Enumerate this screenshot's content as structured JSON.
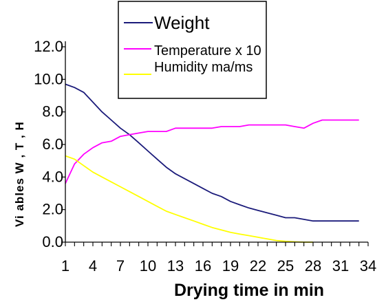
{
  "chart_data": {
    "type": "line",
    "xlabel": "Drying time in min",
    "ylabel": "Vi ables W , T , H",
    "xlim": [
      1,
      34
    ],
    "ylim": [
      0,
      12
    ],
    "x_tick_labels": [
      "1",
      "4",
      "7",
      "10",
      "13",
      "16",
      "19",
      "22",
      "25",
      "28",
      "31",
      "34"
    ],
    "y_tick_labels": [
      "0.0",
      "2.0",
      "4.0",
      "6.0",
      "8.0",
      "10.0",
      "12.0"
    ],
    "legend_position": "top-right",
    "grid": false,
    "x": [
      1,
      2,
      3,
      4,
      5,
      6,
      7,
      8,
      9,
      10,
      11,
      12,
      13,
      14,
      15,
      16,
      17,
      18,
      19,
      20,
      21,
      22,
      23,
      24,
      25,
      26,
      27,
      28,
      29,
      30,
      31,
      32,
      33
    ],
    "series": [
      {
        "name": "Weight",
        "color": "#1a1a7a",
        "values": [
          9.7,
          9.5,
          9.2,
          8.6,
          8.0,
          7.5,
          7.0,
          6.6,
          6.1,
          5.6,
          5.1,
          4.6,
          4.2,
          3.9,
          3.6,
          3.3,
          3.0,
          2.8,
          2.5,
          2.3,
          2.1,
          1.95,
          1.8,
          1.65,
          1.5,
          1.5,
          1.4,
          1.3,
          1.3,
          1.3,
          1.3,
          1.3,
          1.3
        ]
      },
      {
        "name": "Temperature x 10",
        "color": "#ff00ff",
        "values": [
          3.6,
          4.8,
          5.4,
          5.8,
          6.1,
          6.2,
          6.5,
          6.6,
          6.7,
          6.8,
          6.8,
          6.8,
          7.0,
          7.0,
          7.0,
          7.0,
          7.0,
          7.1,
          7.1,
          7.1,
          7.2,
          7.2,
          7.2,
          7.2,
          7.2,
          7.1,
          7.0,
          7.3,
          7.5,
          7.5,
          7.5,
          7.5,
          7.5
        ]
      },
      {
        "name": "Humidity ma/ms",
        "color": "#ffff00",
        "values": [
          5.3,
          5.1,
          4.7,
          4.3,
          4.0,
          3.7,
          3.4,
          3.1,
          2.8,
          2.5,
          2.2,
          1.9,
          1.7,
          1.5,
          1.3,
          1.1,
          0.9,
          0.75,
          0.6,
          0.5,
          0.4,
          0.3,
          0.2,
          0.1,
          0.05,
          0.02,
          0.0,
          0.0,
          null,
          null,
          null,
          null,
          0.0
        ]
      }
    ]
  }
}
